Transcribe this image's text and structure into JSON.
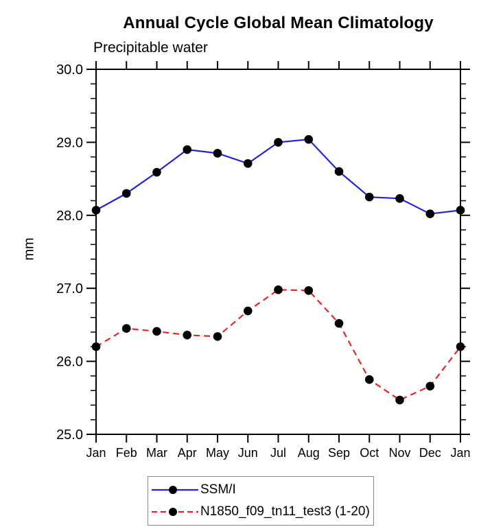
{
  "chart_data": {
    "type": "line",
    "title": "Annual Cycle Global Mean Climatology",
    "subtitle": "Precipitable water",
    "ylabel": "mm",
    "xlabel": "",
    "categories": [
      "Jan",
      "Feb",
      "Mar",
      "Apr",
      "May",
      "Jun",
      "Jul",
      "Aug",
      "Sep",
      "Oct",
      "Nov",
      "Dec",
      "Jan"
    ],
    "ylim": [
      25.0,
      30.0
    ],
    "y_major_step": 1.0,
    "y_minor_step": 0.2,
    "y_tick_labels": [
      "25.0",
      "26.0",
      "27.0",
      "28.0",
      "29.0",
      "30.0"
    ],
    "grid": false,
    "legend_position": "bottom-center",
    "frame_color": "#000000",
    "series": [
      {
        "name": "SSM/I",
        "color": "#2222dd",
        "line_style": "solid",
        "marker": "circle",
        "marker_color": "#000000",
        "values": [
          28.07,
          28.3,
          28.59,
          28.9,
          28.85,
          28.71,
          29.0,
          29.04,
          28.6,
          28.25,
          28.23,
          28.02,
          28.07
        ]
      },
      {
        "name": "N1850_f09_tn11_test3 (1-20)",
        "color": "#ee2222",
        "line_style": "dashed",
        "marker": "circle",
        "marker_color": "#000000",
        "values": [
          26.2,
          26.45,
          26.41,
          26.36,
          26.34,
          26.69,
          26.98,
          26.97,
          26.52,
          25.75,
          25.47,
          25.66,
          26.2
        ]
      }
    ]
  }
}
